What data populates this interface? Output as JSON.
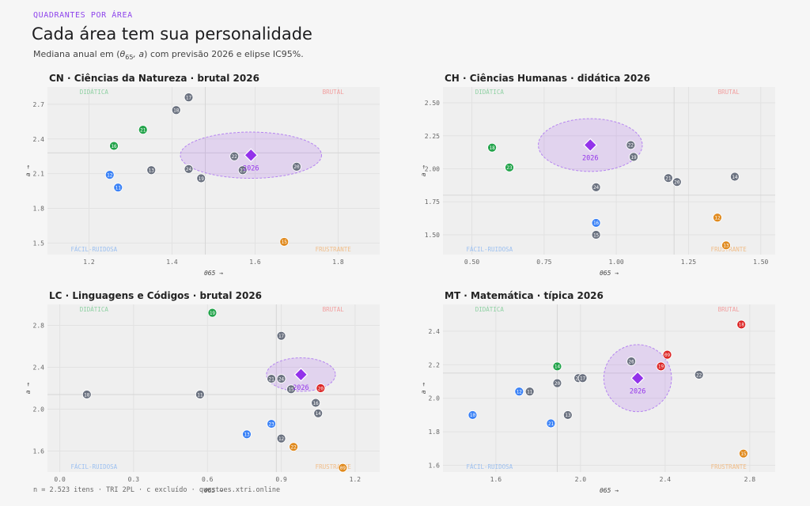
{
  "header": {
    "kicker": "QUADRANTES POR ÁREA",
    "title": "Cada área tem sua personalidade",
    "subtitle_prefix": "Mediana anual em (",
    "subtitle_theta": "θ",
    "subtitle_sub": "65",
    "subtitle_mid": ", a",
    "subtitle_suffix": ") com previsão 2026 e elipse IC95%."
  },
  "footer": "n = 2.523 itens  ·  TRI 2PL  ·  c excluído  ·  questoes.xtri.online",
  "colors": {
    "CN": "#dc2626",
    "CH": "#16a34a",
    "LC": "#dc2626",
    "MT": "#4b5563",
    "green": "#22a34a",
    "blue": "#3b82f6",
    "gray": "#6b7280",
    "red": "#dc2626",
    "orange": "#e08a1e",
    "purple": "#9333ea"
  },
  "chart_data": [
    {
      "id": "CN",
      "type": "scatter",
      "title": "CN · Ciências da Natureza · brutal 2026",
      "title_color": "#dc2626",
      "xlabel": "θ65 →",
      "ylabel": "a →",
      "xlim": [
        1.1,
        1.9
      ],
      "ylim": [
        1.4,
        2.85
      ],
      "xticks": [
        "1.2",
        "1.4",
        "1.6",
        "1.8"
      ],
      "xtick_values": [
        1.2,
        1.4,
        1.6,
        1.8
      ],
      "yticks": [
        "1.5",
        "1.8",
        "2.1",
        "2.4",
        "2.7"
      ],
      "ytick_values": [
        1.5,
        1.8,
        2.1,
        2.4,
        2.7
      ],
      "x_split": 1.48,
      "y_split": 2.28,
      "quadrant_labels": {
        "tl": "DIDÁTICA",
        "tr": "BRUTAL",
        "bl": "FÁCIL-RUIDOSA",
        "br": "FRUSTRANTE"
      },
      "forecast": {
        "label": "2026",
        "x": 1.59,
        "y": 2.26,
        "rx": 0.17,
        "ry": 0.2
      },
      "points": [
        {
          "label": "17",
          "x": 1.44,
          "y": 2.76,
          "color": "gray"
        },
        {
          "label": "18",
          "x": 1.41,
          "y": 2.65,
          "color": "gray"
        },
        {
          "label": "21",
          "x": 1.33,
          "y": 2.48,
          "color": "green"
        },
        {
          "label": "16",
          "x": 1.26,
          "y": 2.34,
          "color": "green"
        },
        {
          "label": "22",
          "x": 1.55,
          "y": 2.25,
          "color": "gray"
        },
        {
          "label": "20",
          "x": 1.7,
          "y": 2.16,
          "color": "gray"
        },
        {
          "label": "13",
          "x": 1.35,
          "y": 2.13,
          "color": "gray"
        },
        {
          "label": "24",
          "x": 1.44,
          "y": 2.14,
          "color": "gray"
        },
        {
          "label": "23",
          "x": 1.57,
          "y": 2.13,
          "color": "gray"
        },
        {
          "label": "12",
          "x": 1.25,
          "y": 2.09,
          "color": "blue"
        },
        {
          "label": "19",
          "x": 1.47,
          "y": 2.06,
          "color": "gray"
        },
        {
          "label": "11",
          "x": 1.27,
          "y": 1.98,
          "color": "blue"
        },
        {
          "label": "15",
          "x": 1.67,
          "y": 1.51,
          "color": "orange"
        }
      ]
    },
    {
      "id": "CH",
      "type": "scatter",
      "title": "CH · Ciências Humanas · didática 2026",
      "title_color": "#16a34a",
      "xlabel": "θ65 →",
      "ylabel": "a →",
      "xlim": [
        0.4,
        1.55
      ],
      "ylim": [
        1.35,
        2.62
      ],
      "xticks": [
        "0.50",
        "0.75",
        "1.00",
        "1.25",
        "1.50"
      ],
      "xtick_values": [
        0.5,
        0.75,
        1.0,
        1.25,
        1.5
      ],
      "yticks": [
        "1.50",
        "1.75",
        "2.00",
        "2.25",
        "2.50"
      ],
      "ytick_values": [
        1.5,
        1.75,
        2.0,
        2.25,
        2.5
      ],
      "x_split": 1.2,
      "y_split": 1.8,
      "quadrant_labels": {
        "tl": "DIDÁTICA",
        "tr": "BRUTAL",
        "bl": "FÁCIL-RUIDOSA",
        "br": "FRUSTRANTE"
      },
      "forecast": {
        "label": "2026",
        "x": 0.91,
        "y": 2.18,
        "rx": 0.18,
        "ry": 0.2
      },
      "points": [
        {
          "label": "18",
          "x": 0.57,
          "y": 2.16,
          "color": "green"
        },
        {
          "label": "23",
          "x": 0.63,
          "y": 2.01,
          "color": "green"
        },
        {
          "label": "22",
          "x": 1.05,
          "y": 2.18,
          "color": "gray"
        },
        {
          "label": "19",
          "x": 1.06,
          "y": 2.09,
          "color": "gray"
        },
        {
          "label": "14",
          "x": 1.41,
          "y": 1.94,
          "color": "gray"
        },
        {
          "label": "21",
          "x": 1.18,
          "y": 1.93,
          "color": "gray"
        },
        {
          "label": "20",
          "x": 1.21,
          "y": 1.9,
          "color": "gray"
        },
        {
          "label": "24",
          "x": 0.93,
          "y": 1.86,
          "color": "gray"
        },
        {
          "label": "12",
          "x": 1.35,
          "y": 1.63,
          "color": "orange"
        },
        {
          "label": "16",
          "x": 0.93,
          "y": 1.59,
          "color": "blue"
        },
        {
          "label": "15",
          "x": 0.93,
          "y": 1.5,
          "color": "gray"
        },
        {
          "label": "13",
          "x": 1.38,
          "y": 1.42,
          "color": "orange"
        }
      ]
    },
    {
      "id": "LC",
      "type": "scatter",
      "title": "LC · Linguagens e Códigos · brutal 2026",
      "title_color": "#dc2626",
      "xlabel": "θ65 →",
      "ylabel": "a →",
      "xlim": [
        -0.05,
        1.3
      ],
      "ylim": [
        1.4,
        3.0
      ],
      "xticks": [
        "0.0",
        "0.3",
        "0.6",
        "0.9",
        "1.2"
      ],
      "xtick_values": [
        0.0,
        0.3,
        0.6,
        0.9,
        1.2
      ],
      "yticks": [
        "1.6",
        "2.0",
        "2.4",
        "2.8"
      ],
      "ytick_values": [
        1.6,
        2.0,
        2.4,
        2.8
      ],
      "x_split": 0.88,
      "y_split": 2.14,
      "quadrant_labels": {
        "tl": "DIDÁTICA",
        "tr": "BRUTAL",
        "bl": "FÁCIL-RUIDOSA",
        "br": "FRUSTRANTE"
      },
      "forecast": {
        "label": "2026",
        "x": 0.98,
        "y": 2.33,
        "rx": 0.14,
        "ry": 0.16
      },
      "points": [
        {
          "label": "19",
          "x": 0.62,
          "y": 2.92,
          "color": "green"
        },
        {
          "label": "17",
          "x": 0.9,
          "y": 2.7,
          "color": "gray"
        },
        {
          "label": "21",
          "x": 0.86,
          "y": 2.29,
          "color": "gray"
        },
        {
          "label": "24",
          "x": 0.9,
          "y": 2.29,
          "color": "gray"
        },
        {
          "label": "20",
          "x": 1.06,
          "y": 2.2,
          "color": "red"
        },
        {
          "label": "15",
          "x": 0.94,
          "y": 2.19,
          "color": "gray"
        },
        {
          "label": "16",
          "x": 1.04,
          "y": 2.06,
          "color": "gray"
        },
        {
          "label": "14",
          "x": 1.05,
          "y": 1.96,
          "color": "gray"
        },
        {
          "label": "18",
          "x": 0.11,
          "y": 2.14,
          "color": "gray"
        },
        {
          "label": "11",
          "x": 0.57,
          "y": 2.14,
          "color": "gray"
        },
        {
          "label": "23",
          "x": 0.86,
          "y": 1.86,
          "color": "blue"
        },
        {
          "label": "13",
          "x": 0.76,
          "y": 1.76,
          "color": "blue"
        },
        {
          "label": "12",
          "x": 0.9,
          "y": 1.72,
          "color": "gray"
        },
        {
          "label": "22",
          "x": 0.95,
          "y": 1.64,
          "color": "orange"
        },
        {
          "label": "09",
          "x": 1.15,
          "y": 1.44,
          "color": "orange"
        }
      ]
    },
    {
      "id": "MT",
      "type": "scatter",
      "title": "MT · Matemática · típica 2026",
      "title_color": "#4b5563",
      "xlabel": "θ65 →",
      "ylabel": "a →",
      "xlim": [
        1.35,
        2.92
      ],
      "ylim": [
        1.56,
        2.56
      ],
      "xticks": [
        "1.6",
        "2.0",
        "2.4",
        "2.8"
      ],
      "xtick_values": [
        1.6,
        2.0,
        2.4,
        2.8
      ],
      "yticks": [
        "1.6",
        "1.8",
        "2.0",
        "2.2",
        "2.4"
      ],
      "ytick_values": [
        1.6,
        1.8,
        2.0,
        2.2,
        2.4
      ],
      "x_split": 1.89,
      "y_split": 2.15,
      "quadrant_labels": {
        "tl": "DIDÁTICA",
        "tr": "BRUTAL",
        "bl": "FÁCIL-RUIDOSA",
        "br": "FRUSTRANTE"
      },
      "forecast": {
        "label": "2026",
        "x": 2.27,
        "y": 2.12,
        "rx": 0.16,
        "ry": 0.2
      },
      "points": [
        {
          "label": "18",
          "x": 2.76,
          "y": 2.44,
          "color": "red"
        },
        {
          "label": "09",
          "x": 2.41,
          "y": 2.26,
          "color": "red"
        },
        {
          "label": "26",
          "x": 2.24,
          "y": 2.22,
          "color": "gray"
        },
        {
          "label": "19",
          "x": 2.38,
          "y": 2.19,
          "color": "red"
        },
        {
          "label": "14",
          "x": 1.89,
          "y": 2.19,
          "color": "green"
        },
        {
          "label": "22",
          "x": 2.56,
          "y": 2.14,
          "color": "gray"
        },
        {
          "label": "23",
          "x": 1.99,
          "y": 2.12,
          "color": "gray"
        },
        {
          "label": "17",
          "x": 2.01,
          "y": 2.12,
          "color": "gray"
        },
        {
          "label": "20",
          "x": 1.89,
          "y": 2.09,
          "color": "gray"
        },
        {
          "label": "12",
          "x": 1.71,
          "y": 2.04,
          "color": "blue"
        },
        {
          "label": "11",
          "x": 1.76,
          "y": 2.04,
          "color": "gray"
        },
        {
          "label": "10",
          "x": 1.49,
          "y": 1.9,
          "color": "blue"
        },
        {
          "label": "13",
          "x": 1.94,
          "y": 1.9,
          "color": "gray"
        },
        {
          "label": "21",
          "x": 1.86,
          "y": 1.85,
          "color": "blue"
        },
        {
          "label": "15",
          "x": 2.77,
          "y": 1.67,
          "color": "orange"
        }
      ]
    }
  ]
}
